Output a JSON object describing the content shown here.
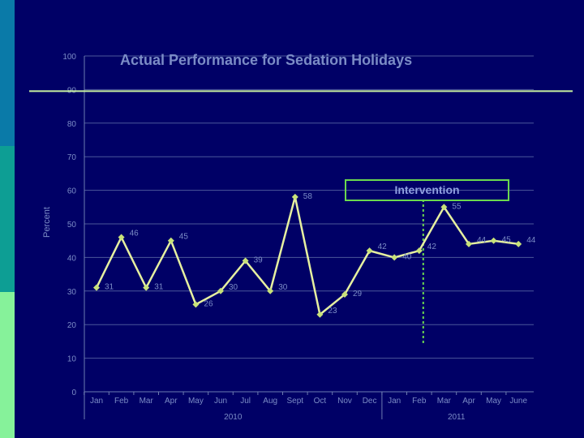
{
  "chart_data": {
    "type": "line",
    "title": "Actual Performance for Sedation Holidays",
    "subtitle_faint": "",
    "ylabel": "Percent",
    "xlabel": "",
    "ylim": [
      0,
      100
    ],
    "yticks": [
      0,
      10,
      20,
      30,
      40,
      50,
      60,
      70,
      80,
      90,
      100
    ],
    "grid": true,
    "legend": "none",
    "categories": [
      "Jan",
      "Feb",
      "Mar",
      "Apr",
      "May",
      "Jun",
      "Jul",
      "Aug",
      "Sept",
      "Oct",
      "Nov",
      "Dec",
      "Jan",
      "Feb",
      "Mar",
      "Apr",
      "May",
      "June"
    ],
    "year_groups": [
      {
        "label": "2010",
        "start": 0,
        "end": 11
      },
      {
        "label": "2011",
        "start": 12,
        "end": 17
      }
    ],
    "series": [
      {
        "values": [
          31,
          46,
          31,
          45,
          26,
          30,
          39,
          30,
          58,
          23,
          29,
          42,
          40,
          42,
          55,
          44,
          45,
          44
        ],
        "labels": [
          "31",
          "46",
          "31",
          "45",
          "26",
          "30",
          "39",
          "30",
          "58",
          "23",
          "29",
          "42",
          "40",
          "42",
          "55",
          "44",
          "45",
          "44"
        ]
      }
    ],
    "target_line": {
      "value": 90
    },
    "intervention": {
      "label": "Intervention",
      "after_index": 13
    },
    "colors": {
      "background": "#000066",
      "series": "#e6f0a0",
      "marker": "#c8e27a",
      "target": "#c8f0a0",
      "intervention": "#6bd84f",
      "axis": "#6d7cb0",
      "text": "#7b8cc6"
    }
  }
}
